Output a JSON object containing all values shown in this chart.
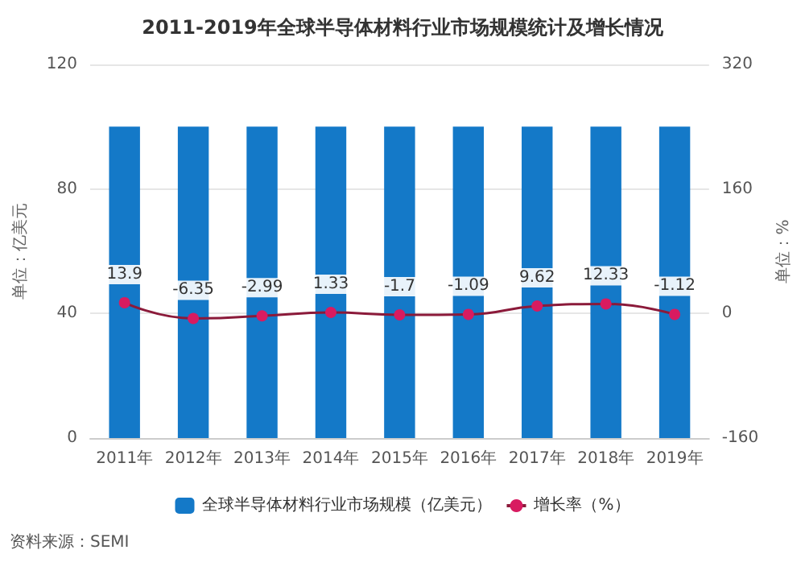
{
  "chart_data": {
    "type": "bar",
    "title": "2011-2019年全球半导体材料行业市场规模统计及增长情况",
    "categories": [
      "2011年",
      "2012年",
      "2013年",
      "2014年",
      "2015年",
      "2016年",
      "2017年",
      "2018年",
      "2019年"
    ],
    "series": [
      {
        "name": "全球半导体材料行业市场规模（亿美元）",
        "color": "#1479c8",
        "values": [
          100,
          100,
          100,
          100,
          100,
          100,
          100,
          100,
          100
        ]
      },
      {
        "name": "增长率（%）",
        "type": "line",
        "axis": "y2",
        "color": "#d81b60",
        "data_labels": true,
        "marker": "circle",
        "values": [
          13.9,
          -6.35,
          -2.99,
          1.33,
          -1.7,
          -1.09,
          9.62,
          12.33,
          -1.12
        ]
      }
    ],
    "ylabel": "单位：亿美元",
    "y2label": "单位：%",
    "ylim": [
      0,
      120
    ],
    "yticks": [
      0,
      40,
      80,
      120
    ],
    "y2lim": [
      -160,
      320
    ],
    "y2ticks": [
      -160,
      0,
      160,
      320
    ],
    "grid": "y",
    "legend": "bottom",
    "annotations": [
      "资料来源：SEMI"
    ]
  }
}
